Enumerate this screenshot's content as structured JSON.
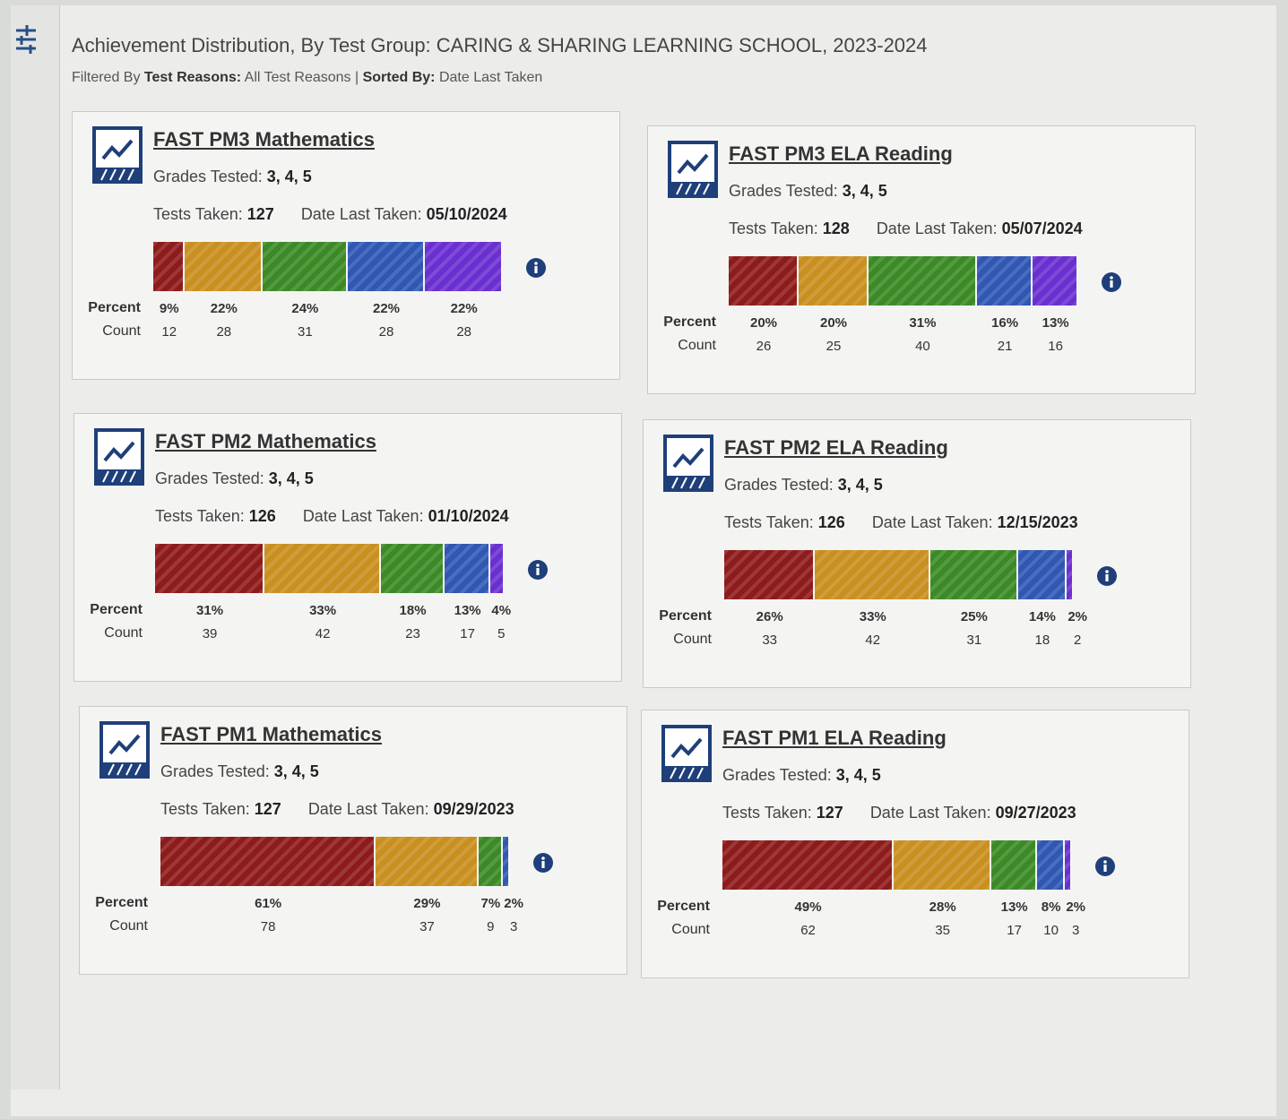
{
  "header": {
    "title": "Achievement Distribution, By Test Group: CARING & SHARING LEARNING SCHOOL, 2023-2024",
    "filtered_by_label": "Filtered By",
    "test_reasons_label": "Test Reasons:",
    "test_reasons_value": "All Test Reasons",
    "separator": "|",
    "sorted_by_label": "Sorted By:",
    "sorted_by_value": "Date Last Taken"
  },
  "row_labels": {
    "percent": "Percent",
    "count": "Count"
  },
  "level_colors": [
    "#8e1b1b",
    "#c98f1f",
    "#3c8a26",
    "#2f57b3",
    "#6a2fd0"
  ],
  "cards": [
    {
      "title": "FAST PM3 Mathematics",
      "grades_label": "Grades Tested:",
      "grades": "3, 4, 5",
      "tests_label": "Tests Taken:",
      "tests": 127,
      "date_label": "Date Last Taken:",
      "date": "05/10/2024",
      "percents": [
        9,
        22,
        24,
        22,
        22
      ],
      "percent_labels": [
        "9%",
        "22%",
        "24%",
        "22%",
        "22%"
      ],
      "counts": [
        12,
        28,
        31,
        28,
        28
      ]
    },
    {
      "title": "FAST PM3 ELA Reading",
      "grades_label": "Grades Tested:",
      "grades": "3, 4, 5",
      "tests_label": "Tests Taken:",
      "tests": 128,
      "date_label": "Date Last Taken:",
      "date": "05/07/2024",
      "percents": [
        20,
        20,
        31,
        16,
        13
      ],
      "percent_labels": [
        "20%",
        "20%",
        "31%",
        "16%",
        "13%"
      ],
      "counts": [
        26,
        25,
        40,
        21,
        16
      ]
    },
    {
      "title": "FAST PM2 Mathematics",
      "grades_label": "Grades Tested:",
      "grades": "3, 4, 5",
      "tests_label": "Tests Taken:",
      "tests": 126,
      "date_label": "Date Last Taken:",
      "date": "01/10/2024",
      "percents": [
        31,
        33,
        18,
        13,
        4
      ],
      "percent_labels": [
        "31%",
        "33%",
        "18%",
        "13%",
        "4%"
      ],
      "counts": [
        39,
        42,
        23,
        17,
        5
      ]
    },
    {
      "title": "FAST PM2 ELA Reading",
      "grades_label": "Grades Tested:",
      "grades": "3, 4, 5",
      "tests_label": "Tests Taken:",
      "tests": 126,
      "date_label": "Date Last Taken:",
      "date": "12/15/2023",
      "percents": [
        26,
        33,
        25,
        14,
        2
      ],
      "percent_labels": [
        "26%",
        "33%",
        "25%",
        "14%",
        "2%"
      ],
      "counts": [
        33,
        42,
        31,
        18,
        2
      ]
    },
    {
      "title": "FAST PM1 Mathematics",
      "grades_label": "Grades Tested:",
      "grades": "3, 4, 5",
      "tests_label": "Tests Taken:",
      "tests": 127,
      "date_label": "Date Last Taken:",
      "date": "09/29/2023",
      "percents": [
        61,
        29,
        7,
        2
      ],
      "percent_labels": [
        "61%",
        "29%",
        "7%",
        "2%"
      ],
      "counts": [
        78,
        37,
        9,
        3
      ]
    },
    {
      "title": "FAST PM1 ELA Reading",
      "grades_label": "Grades Tested:",
      "grades": "3, 4, 5",
      "tests_label": "Tests Taken:",
      "tests": 127,
      "date_label": "Date Last Taken:",
      "date": "09/27/2023",
      "percents": [
        49,
        28,
        13,
        8,
        2
      ],
      "percent_labels": [
        "49%",
        "28%",
        "13%",
        "8%",
        "2%"
      ],
      "counts": [
        62,
        35,
        17,
        10,
        3
      ]
    }
  ]
}
